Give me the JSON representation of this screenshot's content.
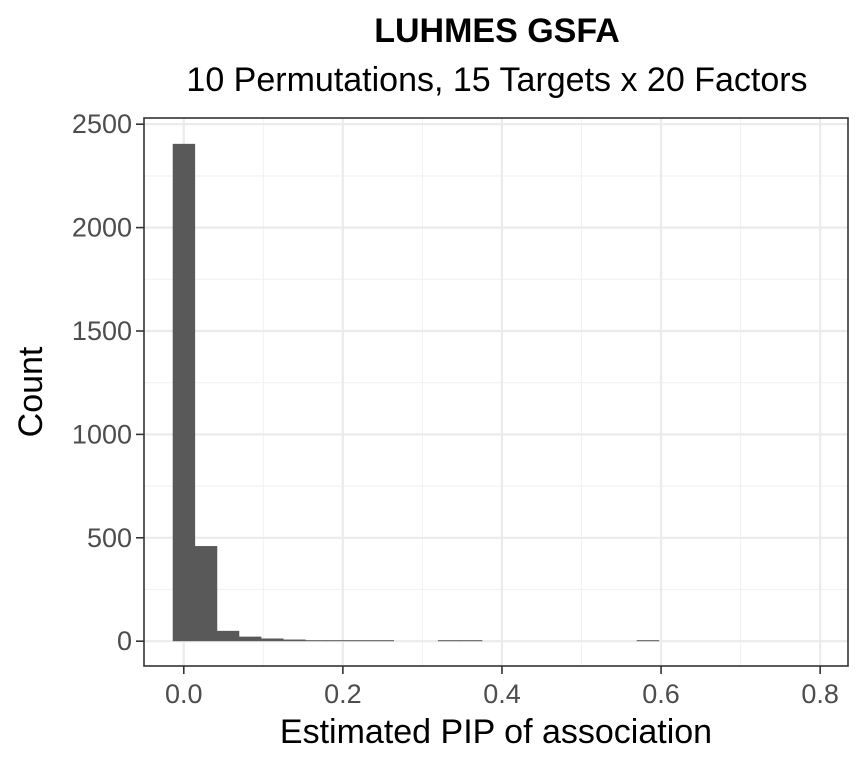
{
  "chart_data": {
    "type": "bar",
    "title": "LUHMES GSFA",
    "subtitle": "10 Permutations, 15 Targets x 20 Factors",
    "xlabel": "Estimated PIP of association",
    "ylabel": "Count",
    "xlim": [
      -0.05,
      0.835
    ],
    "ylim": [
      -120,
      2530
    ],
    "x_ticks": [
      0.0,
      0.2,
      0.4,
      0.6,
      0.8
    ],
    "x_tick_labels": [
      "0.0",
      "0.2",
      "0.4",
      "0.6",
      "0.8"
    ],
    "y_ticks": [
      0,
      500,
      1000,
      1500,
      2000,
      2500
    ],
    "y_tick_labels": [
      "0",
      "500",
      "1000",
      "1500",
      "2000",
      "2500"
    ],
    "grid": true,
    "bar_color": "#595959",
    "bins": [
      {
        "x0": -0.0139,
        "x1": 0.0139,
        "count": 2405
      },
      {
        "x0": 0.0139,
        "x1": 0.0417,
        "count": 460
      },
      {
        "x0": 0.0417,
        "x1": 0.0694,
        "count": 50
      },
      {
        "x0": 0.0694,
        "x1": 0.0972,
        "count": 22
      },
      {
        "x0": 0.0972,
        "x1": 0.125,
        "count": 13
      },
      {
        "x0": 0.125,
        "x1": 0.1528,
        "count": 8
      },
      {
        "x0": 0.1528,
        "x1": 0.1806,
        "count": 4
      },
      {
        "x0": 0.1806,
        "x1": 0.2083,
        "count": 3
      },
      {
        "x0": 0.2083,
        "x1": 0.2361,
        "count": 3
      },
      {
        "x0": 0.2361,
        "x1": 0.2639,
        "count": 2
      },
      {
        "x0": 0.3194,
        "x1": 0.3472,
        "count": 1
      },
      {
        "x0": 0.3472,
        "x1": 0.375,
        "count": 1
      },
      {
        "x0": 0.5694,
        "x1": 0.5972,
        "count": 1
      }
    ]
  }
}
